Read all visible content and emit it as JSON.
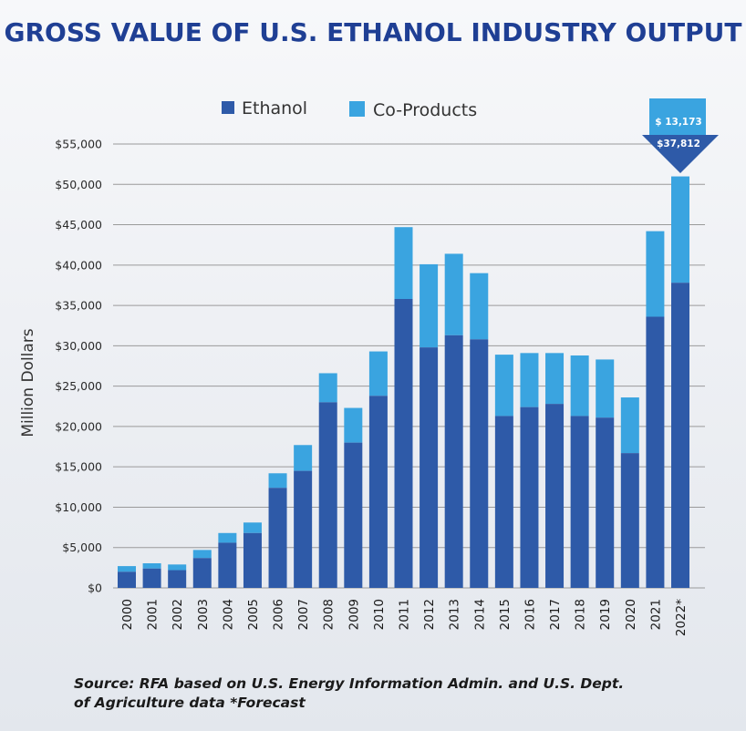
{
  "colors": {
    "ethanol": "#2e5aa8",
    "co_products": "#3aa4e0",
    "title": "#1f3f94",
    "grid": "#9a9a9a",
    "callout_top": "#3aa4e0",
    "callout_arrow": "#2e5aa8"
  },
  "chart_data": {
    "type": "bar",
    "stacked": true,
    "title": "GROSS VALUE OF U.S. ETHANOL INDUSTRY OUTPUT",
    "ylabel": "Million Dollars",
    "xlabel": "",
    "ylim": [
      0,
      55000
    ],
    "yticks": [
      0,
      5000,
      10000,
      15000,
      20000,
      25000,
      30000,
      35000,
      40000,
      45000,
      50000,
      55000
    ],
    "ytick_labels": [
      "$0",
      "$5,000",
      "$10,000",
      "$15,000",
      "$20,000",
      "$25,000",
      "$30,000",
      "$35,000",
      "$40,000",
      "$45,000",
      "$50,000",
      "$55,000"
    ],
    "categories": [
      "2000",
      "2001",
      "2002",
      "2003",
      "2004",
      "2005",
      "2006",
      "2007",
      "2008",
      "2009",
      "2010",
      "2011",
      "2012",
      "2013",
      "2014",
      "2015",
      "2016",
      "2017",
      "2018",
      "2019",
      "2020",
      "2021",
      "2022*"
    ],
    "series": [
      {
        "name": "Ethanol",
        "color": "#2e5aa8",
        "values": [
          2000,
          2400,
          2200,
          3700,
          5600,
          6800,
          12400,
          14500,
          23000,
          18000,
          23800,
          35800,
          29800,
          31300,
          30800,
          21300,
          22400,
          22800,
          21300,
          21100,
          16700,
          33600,
          37812
        ]
      },
      {
        "name": "Co-Products",
        "color": "#3aa4e0",
        "values": [
          700,
          650,
          700,
          1000,
          1200,
          1300,
          1800,
          3200,
          3600,
          4300,
          5500,
          8900,
          10300,
          10100,
          8200,
          7600,
          6700,
          6300,
          7500,
          7200,
          6900,
          10600,
          13173
        ]
      }
    ],
    "legend": {
      "position": "top-center"
    },
    "grid": true,
    "callout": {
      "category": "2022*",
      "top_label": "$ 13,173",
      "bottom_label": "$37,812"
    }
  },
  "footer": {
    "line1": "Source: RFA based on U.S. Energy Information Admin. and U.S. Dept.",
    "line2": "of Agriculture data   *Forecast"
  }
}
